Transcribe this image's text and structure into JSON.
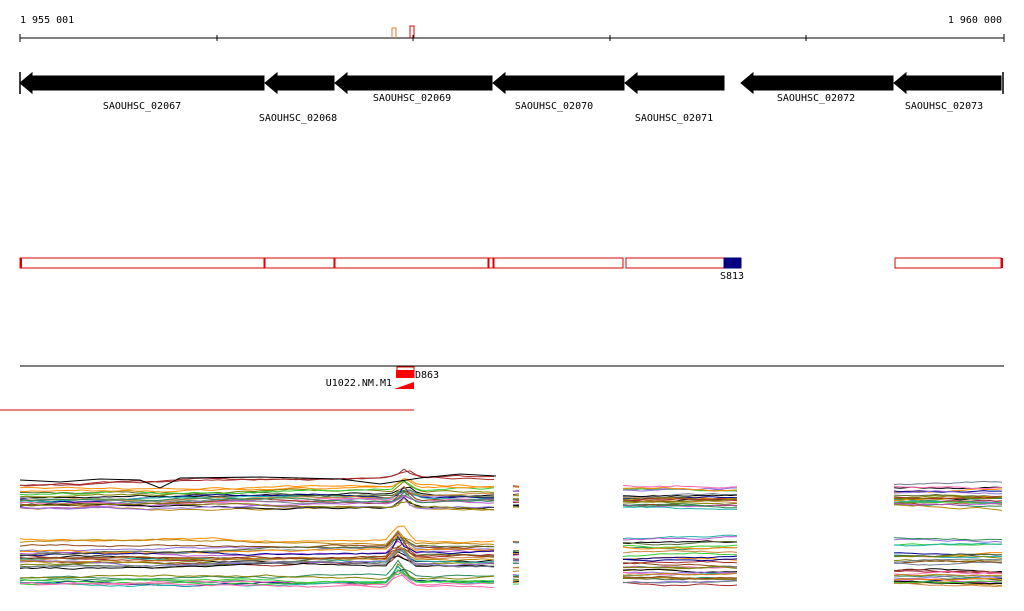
{
  "ruler": {
    "start_label": "1 955 001",
    "end_label": "1 960 000"
  },
  "genes": [
    {
      "id": "SAOUHSC_02067",
      "strand": "-",
      "fill": "#000000"
    },
    {
      "id": "SAOUHSC_02068",
      "strand": "-",
      "fill": "#ffffff"
    },
    {
      "id": "SAOUHSC_02069",
      "strand": "-",
      "fill": "#000000"
    },
    {
      "id": "SAOUHSC_02070",
      "strand": "-",
      "fill": "#000000"
    },
    {
      "id": "SAOUHSC_02071",
      "strand": "-",
      "fill": "#ffffff"
    },
    {
      "id": "SAOUHSC_02072",
      "strand": "-",
      "fill": "#ffffff"
    },
    {
      "id": "SAOUHSC_02073",
      "strand": "-",
      "fill": "#ffffff"
    }
  ],
  "segments_track": {
    "feature_label": "S813",
    "outline_color": "#dd0000",
    "feature_color": "#000080"
  },
  "rna_track": {
    "labels": [
      "U1022.NM.M1",
      "D863"
    ],
    "color": "#ff0000"
  },
  "expression": {
    "palette": [
      "#000000",
      "#2e8b57",
      "#9370db",
      "#ff8c00",
      "#a52a2a",
      "#808000",
      "#00008b",
      "#20b2aa",
      "#ff69b4",
      "#556b2f",
      "#b8860b",
      "#8b4513",
      "#708090",
      "#32cd32",
      "#ba55d3",
      "#cd853f"
    ]
  }
}
